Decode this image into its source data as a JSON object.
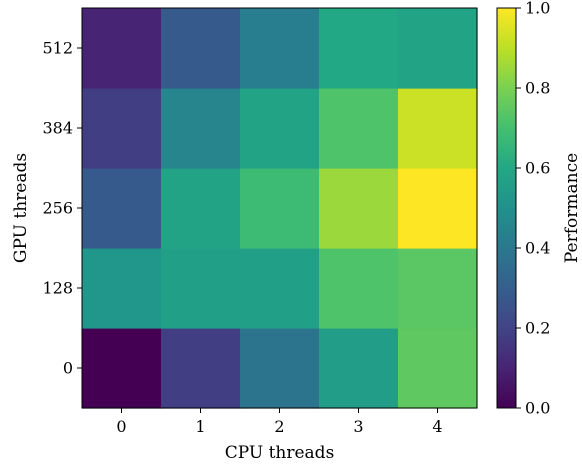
{
  "chart_data": {
    "type": "heatmap",
    "title": "",
    "xlabel": "CPU threads",
    "ylabel": "GPU threads",
    "x_categories": [
      "0",
      "1",
      "2",
      "3",
      "4"
    ],
    "y_categories": [
      "0",
      "128",
      "256",
      "384",
      "512"
    ],
    "values": [
      [
        0.0,
        0.18,
        0.38,
        0.55,
        0.75
      ],
      [
        0.52,
        0.56,
        0.56,
        0.72,
        0.74
      ],
      [
        0.28,
        0.58,
        0.68,
        0.85,
        1.0
      ],
      [
        0.18,
        0.45,
        0.58,
        0.72,
        0.92
      ],
      [
        0.1,
        0.28,
        0.42,
        0.6,
        0.58
      ]
    ],
    "colorbar": {
      "label": "Performance",
      "range": [
        0.0,
        1.0
      ],
      "ticks": [
        "0.0",
        "0.2",
        "0.4",
        "0.6",
        "0.8",
        "1.0"
      ]
    },
    "colormap": "viridis"
  }
}
